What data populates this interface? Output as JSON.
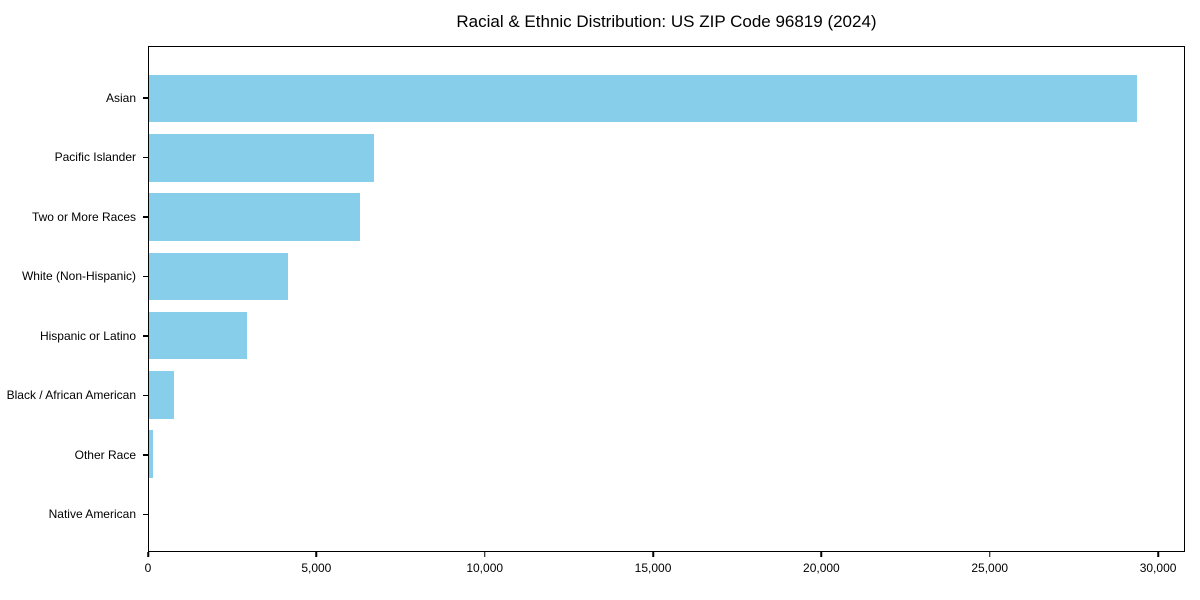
{
  "chart_data": {
    "type": "bar",
    "orientation": "horizontal",
    "title": "Racial & Ethnic Distribution: US ZIP Code 96819 (2024)",
    "categories": [
      "Asian",
      "Pacific Islander",
      "Two or More Races",
      "White (Non-Hispanic)",
      "Hispanic or Latino",
      "Black / African American",
      "Other Race",
      "Native American"
    ],
    "values": [
      29400,
      6700,
      6270,
      4150,
      2930,
      730,
      130,
      0
    ],
    "xlabel": "",
    "ylabel": "",
    "xlim": [
      0,
      30800
    ],
    "x_ticks": [
      0,
      5000,
      10000,
      15000,
      20000,
      25000,
      30000
    ],
    "x_tick_labels": [
      "0",
      "5,000",
      "10,000",
      "15,000",
      "20,000",
      "25,000",
      "30,000"
    ],
    "bar_color": "#87CEEB",
    "spine_color": "#000000",
    "text_color": "#000000",
    "grid": false,
    "legend": null
  }
}
